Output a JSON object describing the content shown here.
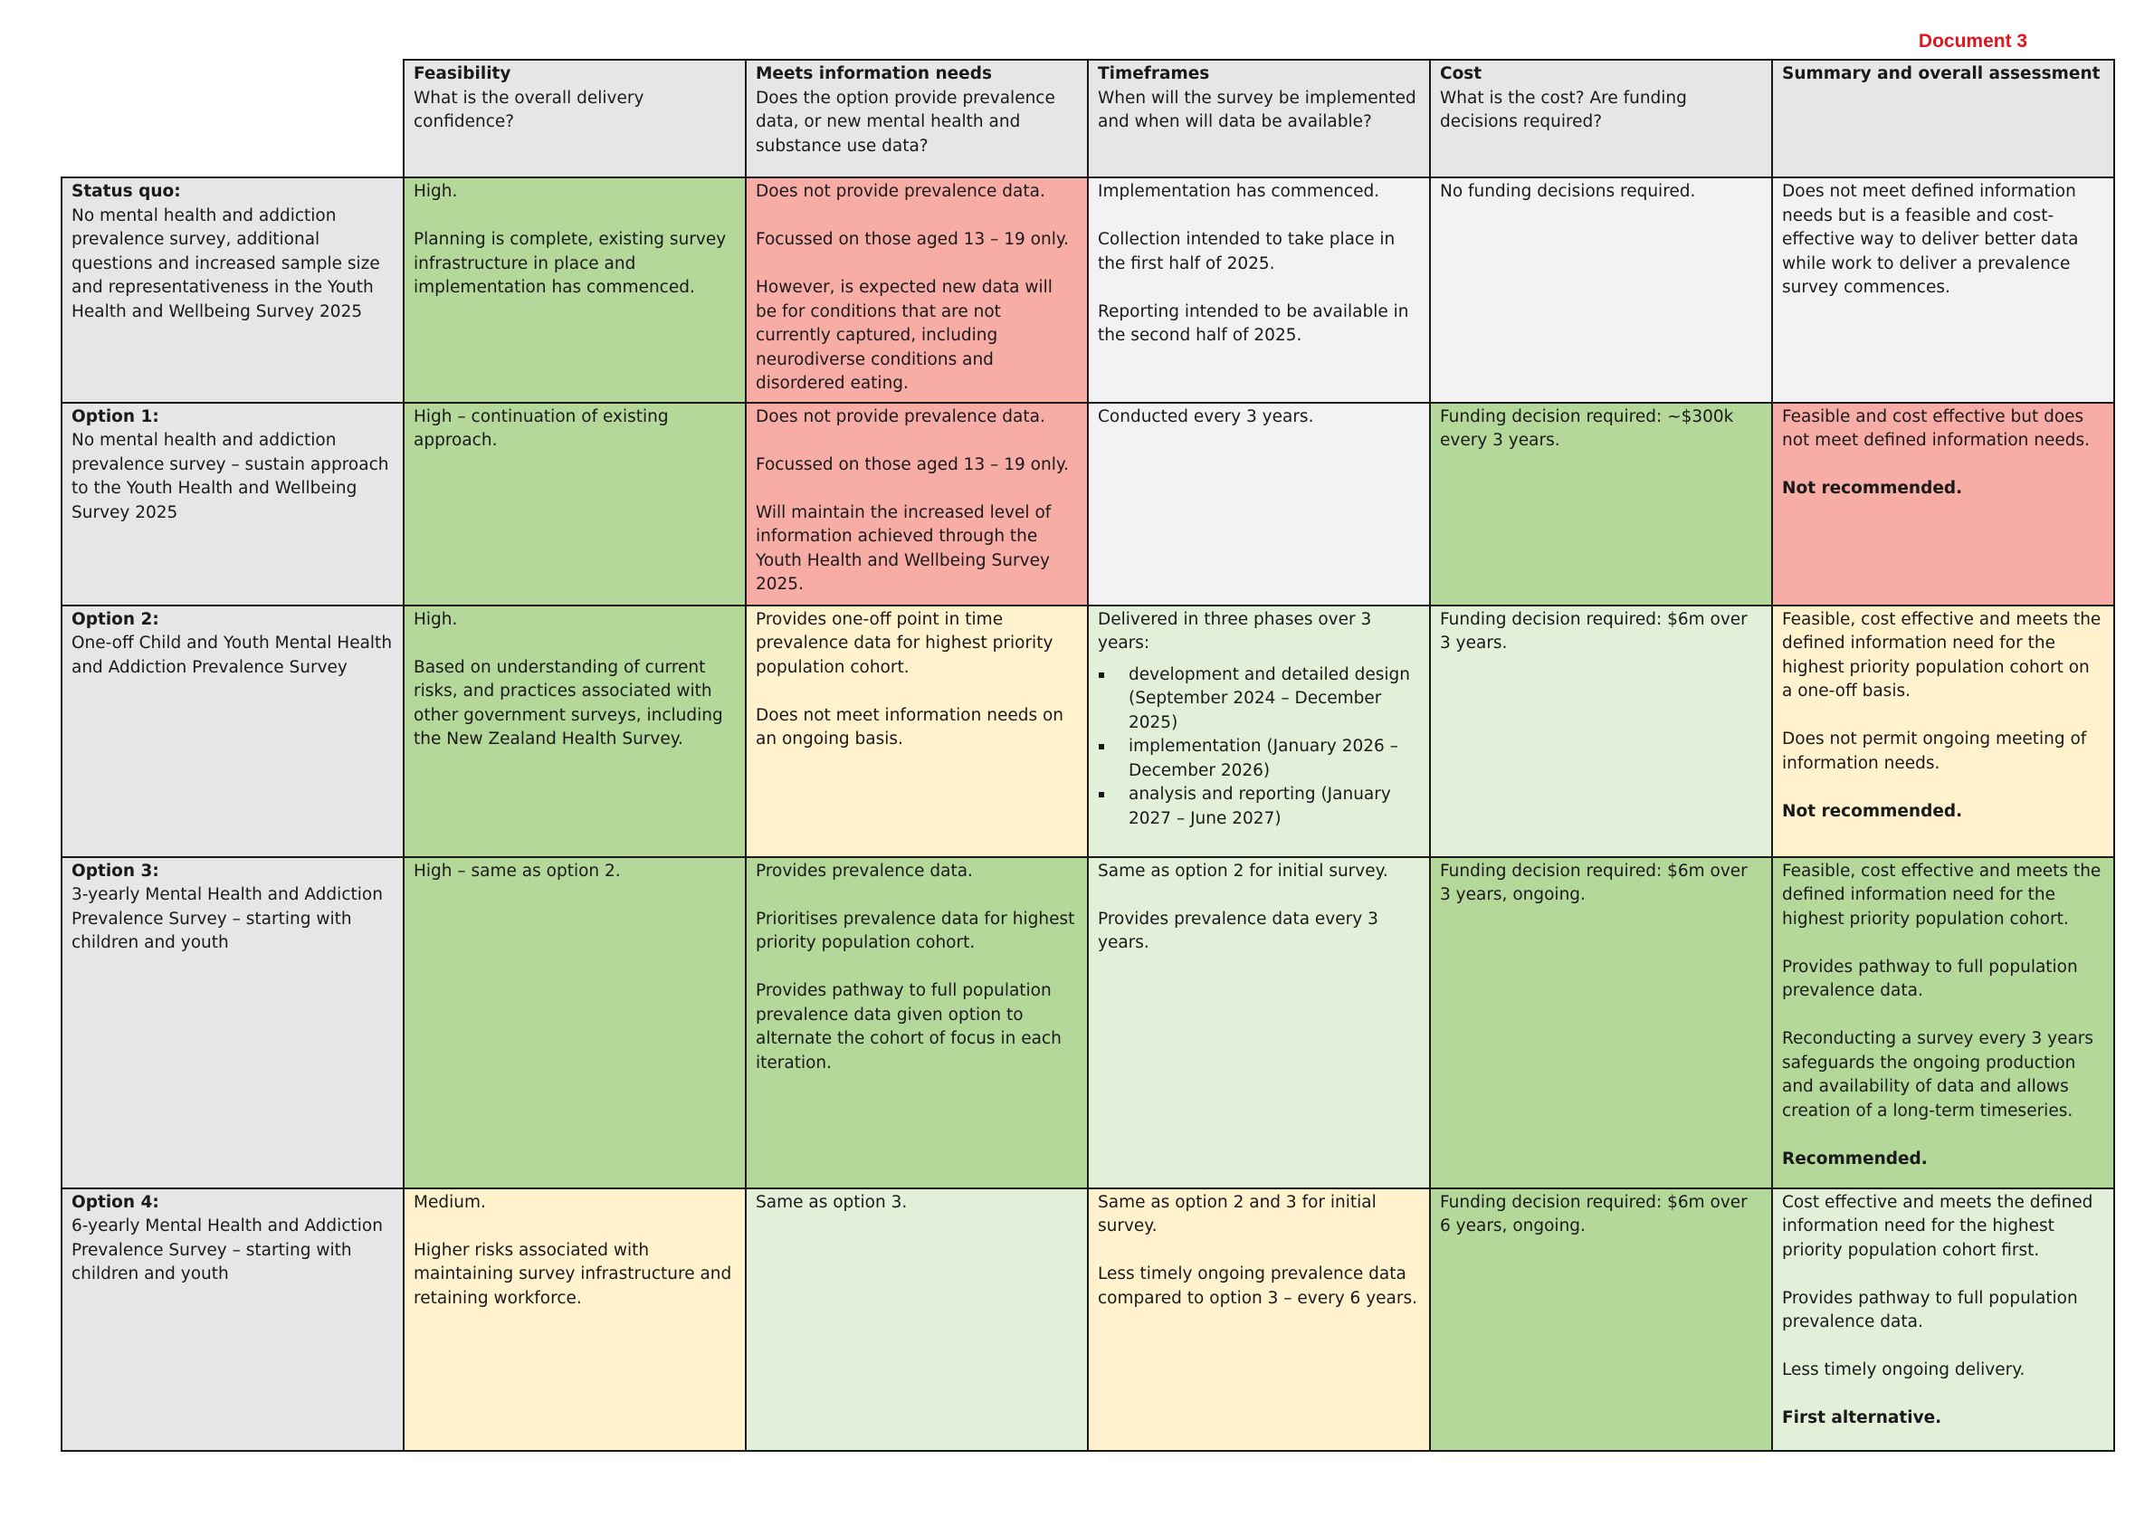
{
  "document_label": "Document 3",
  "colors": {
    "header_grey": "#e6e6e6",
    "light_grey": "#f2f2f2",
    "green": "#b3d89a",
    "red": "#f7aca6",
    "yellow": "#fff2cd",
    "pale_green": "#e2efd9"
  },
  "headers": [
    {
      "title": "Feasibility",
      "sub": "What is the overall delivery confidence?"
    },
    {
      "title": "Meets information needs",
      "sub": "Does the option provide prevalence data, or new mental health and substance use data?"
    },
    {
      "title": "Timeframes",
      "sub": "When will the survey be implemented and when will data be available?"
    },
    {
      "title": "Cost",
      "sub": "What is the cost? Are funding decisions required?"
    },
    {
      "title": "Summary and overall assessment",
      "sub": ""
    }
  ],
  "rows": [
    {
      "label_title": "Status quo:",
      "label_desc": "No mental health and addiction prevalence survey, additional questions and increased sample size and representativeness in the Youth Health and Wellbeing Survey 2025",
      "cells": [
        {
          "color": "green",
          "paras": [
            "High.",
            "Planning is complete, existing survey infrastructure in place and implementation has commenced."
          ]
        },
        {
          "color": "red",
          "paras": [
            "Does not provide prevalence data.",
            "Focussed on those aged 13 – 19 only.",
            "However, is expected new data will be for conditions that are not currently captured, including neurodiverse conditions and disordered eating."
          ]
        },
        {
          "color": "light_grey",
          "paras": [
            "Implementation has commenced.",
            "Collection intended to take place in the first half of 2025.",
            "Reporting intended to be available in the second half of 2025."
          ]
        },
        {
          "color": "light_grey",
          "paras": [
            "No funding decisions required."
          ]
        },
        {
          "color": "light_grey",
          "paras": [
            "Does not meet defined information needs but is a feasible and cost-effective way to deliver better data while work to deliver a prevalence survey commences."
          ]
        }
      ]
    },
    {
      "label_title": "Option 1:",
      "label_desc": "No mental health and addiction prevalence survey – sustain approach to the Youth Health and Wellbeing Survey 2025",
      "cells": [
        {
          "color": "green",
          "paras": [
            "High – continuation of existing approach."
          ]
        },
        {
          "color": "red",
          "paras": [
            "Does not provide prevalence data.",
            "Focussed on those aged 13 – 19 only.",
            "Will maintain the increased level of information achieved through the Youth Health and Wellbeing Survey 2025."
          ]
        },
        {
          "color": "light_grey",
          "paras": [
            "Conducted every 3 years."
          ]
        },
        {
          "color": "green",
          "paras": [
            "Funding decision required: ~$300k every 3 years."
          ]
        },
        {
          "color": "red",
          "paras": [
            "Feasible and cost effective but does not meet defined information needs."
          ],
          "bold_final": "Not recommended."
        }
      ]
    },
    {
      "label_title": "Option 2:",
      "label_desc": "One-off Child and Youth Mental Health and Addiction Prevalence Survey",
      "cells": [
        {
          "color": "green",
          "paras": [
            "High.",
            "Based on understanding of current risks, and practices associated with other government surveys, including the New Zealand Health Survey."
          ]
        },
        {
          "color": "yellow",
          "paras": [
            "Provides one-off point in time prevalence data for highest priority population cohort.",
            "Does not meet information needs on an ongoing basis."
          ]
        },
        {
          "color": "pale_green",
          "paras": [
            "Delivered in three phases over 3 years:"
          ],
          "bullets": [
            "development and detailed design (September 2024 – December 2025)",
            "implementation (January 2026 – December 2026)",
            "analysis and reporting (January 2027 – June 2027)"
          ]
        },
        {
          "color": "pale_green",
          "paras": [
            "Funding decision required: $6m over 3 years."
          ]
        },
        {
          "color": "yellow",
          "paras": [
            "Feasible, cost effective and meets the defined information need for the highest priority population cohort on a one-off basis.",
            "Does not permit ongoing meeting of information needs."
          ],
          "bold_final": "Not recommended."
        }
      ]
    },
    {
      "label_title": "Option 3:",
      "label_desc": "3-yearly Mental Health and Addiction Prevalence Survey – starting with children and youth",
      "cells": [
        {
          "color": "green",
          "paras": [
            "High – same as option 2."
          ]
        },
        {
          "color": "green",
          "paras": [
            "Provides prevalence data.",
            "Prioritises prevalence data for highest priority population cohort.",
            "Provides pathway to full population prevalence data given option to alternate the cohort of focus in each iteration."
          ]
        },
        {
          "color": "pale_green",
          "paras": [
            "Same as option 2 for initial survey.",
            "Provides prevalence data every 3 years."
          ]
        },
        {
          "color": "green",
          "paras": [
            "Funding decision required: $6m over 3 years, ongoing."
          ]
        },
        {
          "color": "green",
          "paras": [
            "Feasible, cost effective and meets the defined information need for the highest priority population cohort.",
            "Provides pathway to full population prevalence data.",
            "Reconducting a survey every 3 years safeguards the ongoing production and availability of data and allows creation of a long-term timeseries."
          ],
          "bold_final": "Recommended."
        }
      ]
    },
    {
      "label_title": "Option 4:",
      "label_desc": "6-yearly Mental Health and Addiction Prevalence Survey – starting with children and youth",
      "cells": [
        {
          "color": "yellow",
          "paras": [
            "Medium.",
            "Higher risks associated with maintaining survey infrastructure and retaining workforce."
          ]
        },
        {
          "color": "pale_green",
          "paras": [
            "Same as option 3."
          ]
        },
        {
          "color": "yellow",
          "paras": [
            "Same as option 2 and 3 for initial survey.",
            "Less timely ongoing prevalence data compared to option 3 – every 6 years."
          ]
        },
        {
          "color": "green",
          "paras": [
            "Funding decision required: $6m over 6 years, ongoing."
          ]
        },
        {
          "color": "pale_green",
          "paras": [
            "Cost effective and meets the defined information need for the highest priority population cohort first.",
            "Provides pathway to full population prevalence data.",
            "Less timely ongoing delivery."
          ],
          "bold_final": "First alternative."
        }
      ]
    }
  ]
}
